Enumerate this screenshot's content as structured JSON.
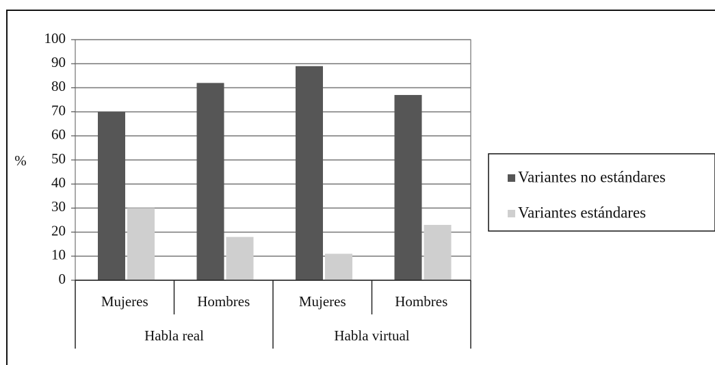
{
  "chart_data": {
    "type": "bar",
    "ylabel": "%",
    "categories": [
      "Mujeres",
      "Hombres",
      "Mujeres",
      "Hombres"
    ],
    "groups": [
      "Habla real",
      "Habla virtual"
    ],
    "series": [
      {
        "name": "Variantes no estándares",
        "color": "#565656",
        "values": [
          70,
          82,
          89,
          77
        ]
      },
      {
        "name": "Variantes estándares",
        "color": "#cfcfcf",
        "values": [
          30,
          18,
          11,
          23
        ]
      }
    ],
    "ylim": [
      0,
      100
    ],
    "yticks": [
      0,
      10,
      20,
      30,
      40,
      50,
      60,
      70,
      80,
      90,
      100
    ],
    "grid": true,
    "legend": "right"
  }
}
